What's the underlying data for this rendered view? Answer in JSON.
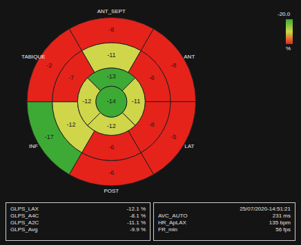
{
  "chart_data": {
    "type": "bullseye",
    "walls": [
      "ANT_SEPT",
      "ANT",
      "LAT",
      "POST",
      "INF",
      "TABIQUE"
    ],
    "rings": [
      {
        "values": [
          -8,
          -8,
          -5,
          -6,
          -17,
          -2
        ],
        "colors": [
          "#e5231b",
          "#e5231b",
          "#e5231b",
          "#e5231b",
          "#3daa35",
          "#e5231b"
        ]
      },
      {
        "values": [
          -11,
          -6,
          -8,
          -6,
          -12,
          -7
        ],
        "colors": [
          "#cfd64a",
          "#e5231b",
          "#e5231b",
          "#e5231b",
          "#cfd64a",
          "#e5231b"
        ]
      },
      {
        "values": [
          -13,
          -11,
          -12,
          -12
        ],
        "colors": [
          "#3daa35",
          "#cfd64a",
          "#cfd64a",
          "#cfd64a"
        ]
      }
    ],
    "apex": {
      "value": -14,
      "color": "#3daa35"
    },
    "colorbar": {
      "label": "-20.0",
      "unit": "%",
      "colors": [
        "#e5231b",
        "#cfd64a",
        "#3daa35"
      ]
    },
    "measurements": [
      {
        "label": "GLPS_LAX",
        "value": "-12.1 %"
      },
      {
        "label": "GLPS_A4C",
        "value": "-8.1 %"
      },
      {
        "label": "GLPS_A2C",
        "value": "-11.1 %"
      },
      {
        "label": "GLPS_Avg",
        "value": "-9.9 %"
      }
    ],
    "info": [
      {
        "label": "AVC_AUTO",
        "value": "231 ms"
      },
      {
        "label": "HR_ApLAX",
        "value": "135 bpm"
      },
      {
        "label": "FR_min",
        "value": "56 fps"
      }
    ],
    "timestamp": "25/07/2020-14:51:21"
  }
}
